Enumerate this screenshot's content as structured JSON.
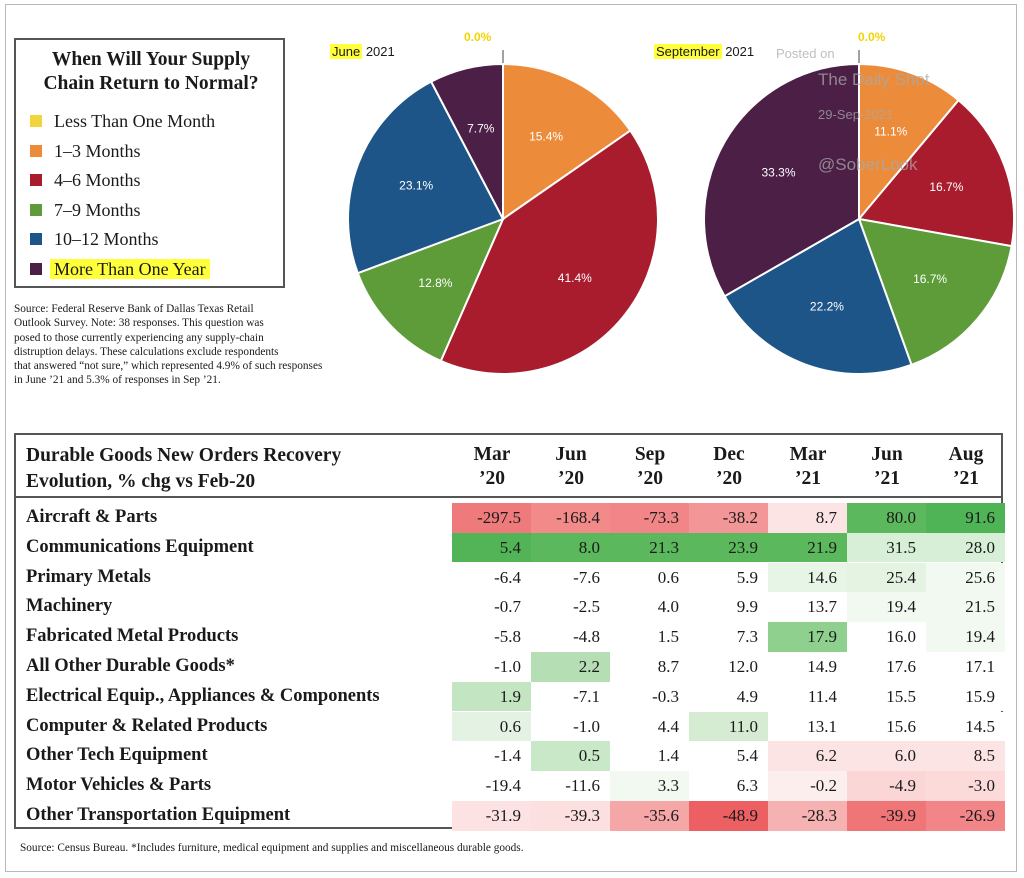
{
  "legend": {
    "title_line1": "When Will Your Supply",
    "title_line2": "Chain Return to Normal?",
    "items": [
      {
        "label": "Less Than One Month",
        "color": "#f2d43b",
        "highlight": false
      },
      {
        "label": "1–3 Months",
        "color": "#ec8c3a",
        "highlight": false
      },
      {
        "label": "4–6 Months",
        "color": "#a81c2e",
        "highlight": false
      },
      {
        "label": "7–9 Months",
        "color": "#5e9c3a",
        "highlight": false
      },
      {
        "label": "10–12 Months",
        "color": "#1d5588",
        "highlight": false
      },
      {
        "label": "More Than One Year",
        "color": "#4c1f47",
        "highlight": true
      }
    ]
  },
  "note_lines": [
    "Source:  Federal Reserve Bank of Dallas Texas Retail",
    "Outlook Survey.  Note:  38 responses. This question was",
    "posed to those currently experiencing any supply-chain",
    "distruption delays. These calculations exclude respondents",
    "that answered “not sure,” which represented 4.9% of such responses",
    "in June ’21 and 5.3% of responses in Sep ’21."
  ],
  "watermark": {
    "posted_on": "Posted on",
    "source": "The Daily Shot",
    "date": "29-Sep-2021",
    "handle": "@SoberLook"
  },
  "chart_data": [
    {
      "type": "pie",
      "title_highlight": "June",
      "title_rest": " 2021",
      "categories": [
        "Less Than One Month",
        "1–3 Months",
        "4–6 Months",
        "7–9 Months",
        "10–12 Months",
        "More Than One Year"
      ],
      "values": [
        0.0,
        15.4,
        41.4,
        12.8,
        23.1,
        7.7
      ],
      "labels": [
        "0.0%",
        "15.4%",
        "41.4%",
        "12.8%",
        "23.1%",
        "7.7%"
      ],
      "colors": [
        "#f2d43b",
        "#ec8c3a",
        "#a81c2e",
        "#5e9c3a",
        "#1d5588",
        "#4c1f47"
      ]
    },
    {
      "type": "pie",
      "title_highlight": "September",
      "title_rest": " 2021",
      "categories": [
        "Less Than One Month",
        "1–3 Months",
        "4–6 Months",
        "7–9 Months",
        "10–12 Months",
        "More Than One Year"
      ],
      "values": [
        0.0,
        11.1,
        16.7,
        16.7,
        22.2,
        33.3
      ],
      "labels": [
        "0.0%",
        "11.1%",
        "16.7%",
        "16.7%",
        "22.2%",
        "33.3%"
      ],
      "colors": [
        "#f2d43b",
        "#ec8c3a",
        "#a81c2e",
        "#5e9c3a",
        "#1d5588",
        "#4c1f47"
      ]
    },
    {
      "type": "table",
      "title_line1": "Durable Goods New Orders Recovery",
      "title_line2": "Evolution, % chg vs Feb-20",
      "columns": [
        {
          "line1": "Mar",
          "line2": "’20"
        },
        {
          "line1": "Jun",
          "line2": "’20"
        },
        {
          "line1": "Sep",
          "line2": "’20"
        },
        {
          "line1": "Dec",
          "line2": "’20"
        },
        {
          "line1": "Mar",
          "line2": "’21"
        },
        {
          "line1": "Jun",
          "line2": "’21"
        },
        {
          "line1": "Aug",
          "line2": "’21"
        }
      ],
      "rows": [
        {
          "label": "Aircraft & Parts",
          "values": [
            "-297.5",
            "-168.4",
            "-73.3",
            "-38.2",
            "8.7",
            "80.0",
            "91.6"
          ]
        },
        {
          "label": "Communications Equipment",
          "values": [
            "5.4",
            "8.0",
            "21.3",
            "23.9",
            "21.9",
            "31.5",
            "28.0"
          ]
        },
        {
          "label": "Primary Metals",
          "values": [
            "-6.4",
            "-7.6",
            "0.6",
            "5.9",
            "14.6",
            "25.4",
            "25.6"
          ]
        },
        {
          "label": "Machinery",
          "values": [
            "-0.7",
            "-2.5",
            "4.0",
            "9.9",
            "13.7",
            "19.4",
            "21.5"
          ]
        },
        {
          "label": "Fabricated Metal Products",
          "values": [
            "-5.8",
            "-4.8",
            "1.5",
            "7.3",
            "17.9",
            "16.0",
            "19.4"
          ]
        },
        {
          "label": "All Other Durable Goods*",
          "values": [
            "-1.0",
            "2.2",
            "8.7",
            "12.0",
            "14.9",
            "17.6",
            "17.1"
          ]
        },
        {
          "label": "Electrical Equip., Appliances & Components",
          "values": [
            "1.9",
            "-7.1",
            "-0.3",
            "4.9",
            "11.4",
            "15.5",
            "15.9"
          ]
        },
        {
          "label": "Computer & Related Products",
          "values": [
            "0.6",
            "-1.0",
            "4.4",
            "11.0",
            "13.1",
            "15.6",
            "14.5"
          ]
        },
        {
          "label": "Other Tech Equipment",
          "values": [
            "-1.4",
            "0.5",
            "1.4",
            "5.4",
            "6.2",
            "6.0",
            "8.5"
          ]
        },
        {
          "label": "Motor Vehicles & Parts",
          "values": [
            "-19.4",
            "-11.6",
            "3.3",
            "6.3",
            "-0.2",
            "-4.9",
            "-3.0"
          ]
        },
        {
          "label": "Other Transportation Equipment",
          "values": [
            "-31.9",
            "-39.3",
            "-35.6",
            "-48.9",
            "-28.3",
            "-39.9",
            "-26.9"
          ]
        }
      ],
      "cell_colors": [
        [
          "#ee7a7c",
          "#f28a8a",
          "#f18587",
          "#f39697",
          "#fde4e4",
          "#5cb85c",
          "#4fb455"
        ],
        [
          "#52b457",
          "#5cb85c",
          "#5cb85c",
          "#5cb85c",
          "#5cb85c",
          "#d7efd6",
          "#d7efd6"
        ],
        [
          "#ffffff",
          "#ffffff",
          "#ffffff",
          "#ffffff",
          "#e7f5e6",
          "#e4f3e2",
          "#f2f9f1"
        ],
        [
          "#ffffff",
          "#ffffff",
          "#ffffff",
          "#ffffff",
          "#ffffff",
          "#f2f9f1",
          "#f2f9f1"
        ],
        [
          "#ffffff",
          "#ffffff",
          "#ffffff",
          "#ffffff",
          "#8fd08f",
          "#ffffff",
          "#f2f9f1"
        ],
        [
          "#ffffff",
          "#b5deb4",
          "#ffffff",
          "#ffffff",
          "#ffffff",
          "#ffffff",
          "#ffffff"
        ],
        [
          "#c3e5c1",
          "#ffffff",
          "#ffffff",
          "#ffffff",
          "#ffffff",
          "#ffffff",
          "#ffffff"
        ],
        [
          "#e3f2e2",
          "#ffffff",
          "#ffffff",
          "#d5ecd3",
          "#ffffff",
          "#ffffff",
          "#ffffff"
        ],
        [
          "#ffffff",
          "#c9e8c7",
          "#ffffff",
          "#ffffff",
          "#fce4e4",
          "#fce4e4",
          "#fce4e4"
        ],
        [
          "#ffffff",
          "#ffffff",
          "#f2f9f1",
          "#ffffff",
          "#fdeeee",
          "#fbd6d6",
          "#fcdada"
        ],
        [
          "#fce2e2",
          "#fce0e0",
          "#f5a7a8",
          "#ec5f63",
          "#f6b1b2",
          "#f07577",
          "#f28587"
        ]
      ]
    }
  ],
  "table_source": "Source: Census Bureau. *Includes furniture, medical equipment and supplies and miscellaneous durable goods."
}
